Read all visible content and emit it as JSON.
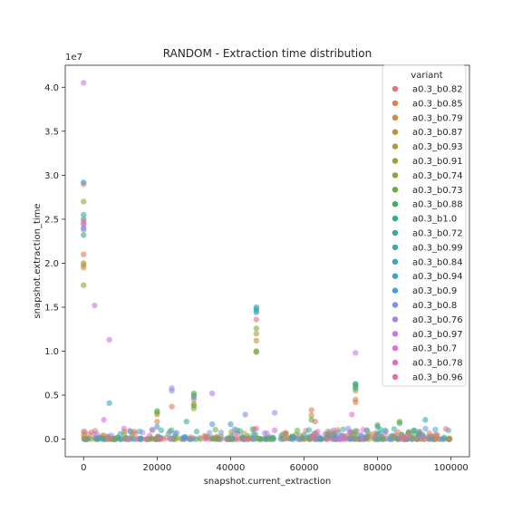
{
  "chart_data": {
    "type": "scatter",
    "title": "RANDOM - Extraction time distribution",
    "xlabel": "snapshot.current_extraction",
    "ylabel": "snapshot.extraction_time",
    "y_offset_label": "1e7",
    "xlim": [
      -5000,
      105000
    ],
    "ylim": [
      -0.2,
      4.25
    ],
    "x_ticks": [
      0,
      20000,
      40000,
      60000,
      80000,
      100000
    ],
    "x_tick_labels": [
      "0",
      "20000",
      "40000",
      "60000",
      "80000",
      "100000"
    ],
    "y_ticks": [
      0.0,
      0.5,
      1.0,
      1.5,
      2.0,
      2.5,
      3.0,
      3.5,
      4.0
    ],
    "y_tick_labels": [
      "0.0",
      "0.5",
      "1.0",
      "1.5",
      "2.0",
      "2.5",
      "3.0",
      "3.5",
      "4.0"
    ],
    "grid": false,
    "legend": {
      "title": "variant",
      "placement": "top-right"
    },
    "series": [
      {
        "name": "a0.3_b0.82",
        "color": "#e8737a",
        "points": [
          [
            0,
            2.9
          ],
          [
            47000,
            1.36
          ],
          [
            30000,
            0.45
          ],
          [
            63000,
            0.2
          ]
        ]
      },
      {
        "name": "a0.3_b0.85",
        "color": "#e07b56",
        "points": [
          [
            0,
            2.1
          ],
          [
            24000,
            0.37
          ],
          [
            62000,
            0.33
          ],
          [
            74000,
            0.45
          ]
        ]
      },
      {
        "name": "a0.3_b0.79",
        "color": "#d3883d",
        "points": [
          [
            0,
            1.95
          ],
          [
            20000,
            0.2
          ],
          [
            74000,
            0.42
          ],
          [
            30000,
            0.5
          ]
        ]
      },
      {
        "name": "a0.3_b0.87",
        "color": "#c0923a",
        "points": [
          [
            0,
            1.98
          ],
          [
            47000,
            1.12
          ],
          [
            20000,
            0.28
          ],
          [
            62000,
            0.27
          ]
        ]
      },
      {
        "name": "a0.3_b0.93",
        "color": "#ae9a3a",
        "points": [
          [
            0,
            2.0
          ],
          [
            47000,
            1.2
          ],
          [
            30000,
            0.4
          ],
          [
            74000,
            0.55
          ]
        ]
      },
      {
        "name": "a0.3_b0.91",
        "color": "#9aa13a",
        "points": [
          [
            0,
            2.7
          ],
          [
            47000,
            1.0
          ],
          [
            20000,
            0.3
          ],
          [
            74000,
            0.6
          ]
        ]
      },
      {
        "name": "a0.3_b0.74",
        "color": "#83a83a",
        "points": [
          [
            0,
            1.75
          ],
          [
            47000,
            1.26
          ],
          [
            30000,
            0.35
          ],
          [
            86000,
            0.2
          ]
        ]
      },
      {
        "name": "a0.3_b0.73",
        "color": "#5fae3e",
        "points": [
          [
            47000,
            0.99
          ],
          [
            30000,
            0.38
          ],
          [
            80000,
            0.16
          ],
          [
            62000,
            0.22
          ]
        ]
      },
      {
        "name": "a0.3_b0.88",
        "color": "#3db05a",
        "points": [
          [
            74000,
            0.63
          ],
          [
            30000,
            0.52
          ],
          [
            86000,
            0.18
          ],
          [
            20000,
            0.32
          ]
        ]
      },
      {
        "name": "a0.3_b1.0",
        "color": "#36ae7c",
        "points": [
          [
            0,
            2.32
          ],
          [
            47000,
            1.48
          ],
          [
            74000,
            0.58
          ],
          [
            55000,
            0.06
          ]
        ]
      },
      {
        "name": "a0.3_b0.72",
        "color": "#37ac93",
        "points": [
          [
            0,
            2.55
          ],
          [
            28000,
            0.2
          ],
          [
            74000,
            0.62
          ],
          [
            90000,
            0.1
          ]
        ]
      },
      {
        "name": "a0.3_b0.99",
        "color": "#39aaa8",
        "points": [
          [
            0,
            2.5
          ],
          [
            30000,
            0.48
          ],
          [
            47000,
            1.46
          ],
          [
            80000,
            0.14
          ]
        ]
      },
      {
        "name": "a0.3_b0.84",
        "color": "#3ba7b9",
        "points": [
          [
            7000,
            0.41
          ],
          [
            47000,
            1.5
          ],
          [
            74000,
            0.05
          ],
          [
            93000,
            0.22
          ]
        ]
      },
      {
        "name": "a0.3_b0.94",
        "color": "#3ea3cc",
        "points": [
          [
            0,
            2.92
          ],
          [
            40000,
            0.17
          ],
          [
            47000,
            1.44
          ],
          [
            84000,
            0.04
          ]
        ]
      },
      {
        "name": "a0.3_b0.9",
        "color": "#4b9de3",
        "points": [
          [
            0,
            2.4
          ],
          [
            35000,
            0.17
          ],
          [
            20000,
            0.14
          ],
          [
            60000,
            0.05
          ]
        ]
      },
      {
        "name": "a0.3_b0.8",
        "color": "#7d92ea",
        "points": [
          [
            0,
            2.44
          ],
          [
            44000,
            0.28
          ],
          [
            24000,
            0.55
          ],
          [
            68000,
            0.1
          ]
        ]
      },
      {
        "name": "a0.3_b0.76",
        "color": "#a287ea",
        "points": [
          [
            0,
            2.38
          ],
          [
            24000,
            0.58
          ],
          [
            52000,
            0.3
          ],
          [
            72000,
            0.12
          ]
        ]
      },
      {
        "name": "a0.3_b0.97",
        "color": "#c47ce6",
        "points": [
          [
            0,
            4.05
          ],
          [
            3000,
            1.52
          ],
          [
            7000,
            1.13
          ],
          [
            35000,
            0.52
          ],
          [
            74000,
            0.98
          ]
        ]
      },
      {
        "name": "a0.3_b0.7",
        "color": "#e36ee0",
        "points": [
          [
            5500,
            0.22
          ],
          [
            52000,
            0.1
          ],
          [
            73000,
            0.28
          ],
          [
            11000,
            0.12
          ]
        ]
      },
      {
        "name": "a0.3_b0.78",
        "color": "#e96cb8",
        "points": [
          [
            0,
            2.45
          ],
          [
            47000,
            0.12
          ],
          [
            67000,
            0.08
          ],
          [
            96000,
            0.04
          ]
        ]
      },
      {
        "name": "a0.3_b0.96",
        "color": "#e8709a",
        "points": [
          [
            0,
            2.48
          ],
          [
            42000,
            0.06
          ],
          [
            85000,
            0.05
          ],
          [
            18000,
            0.04
          ]
        ]
      }
    ]
  }
}
